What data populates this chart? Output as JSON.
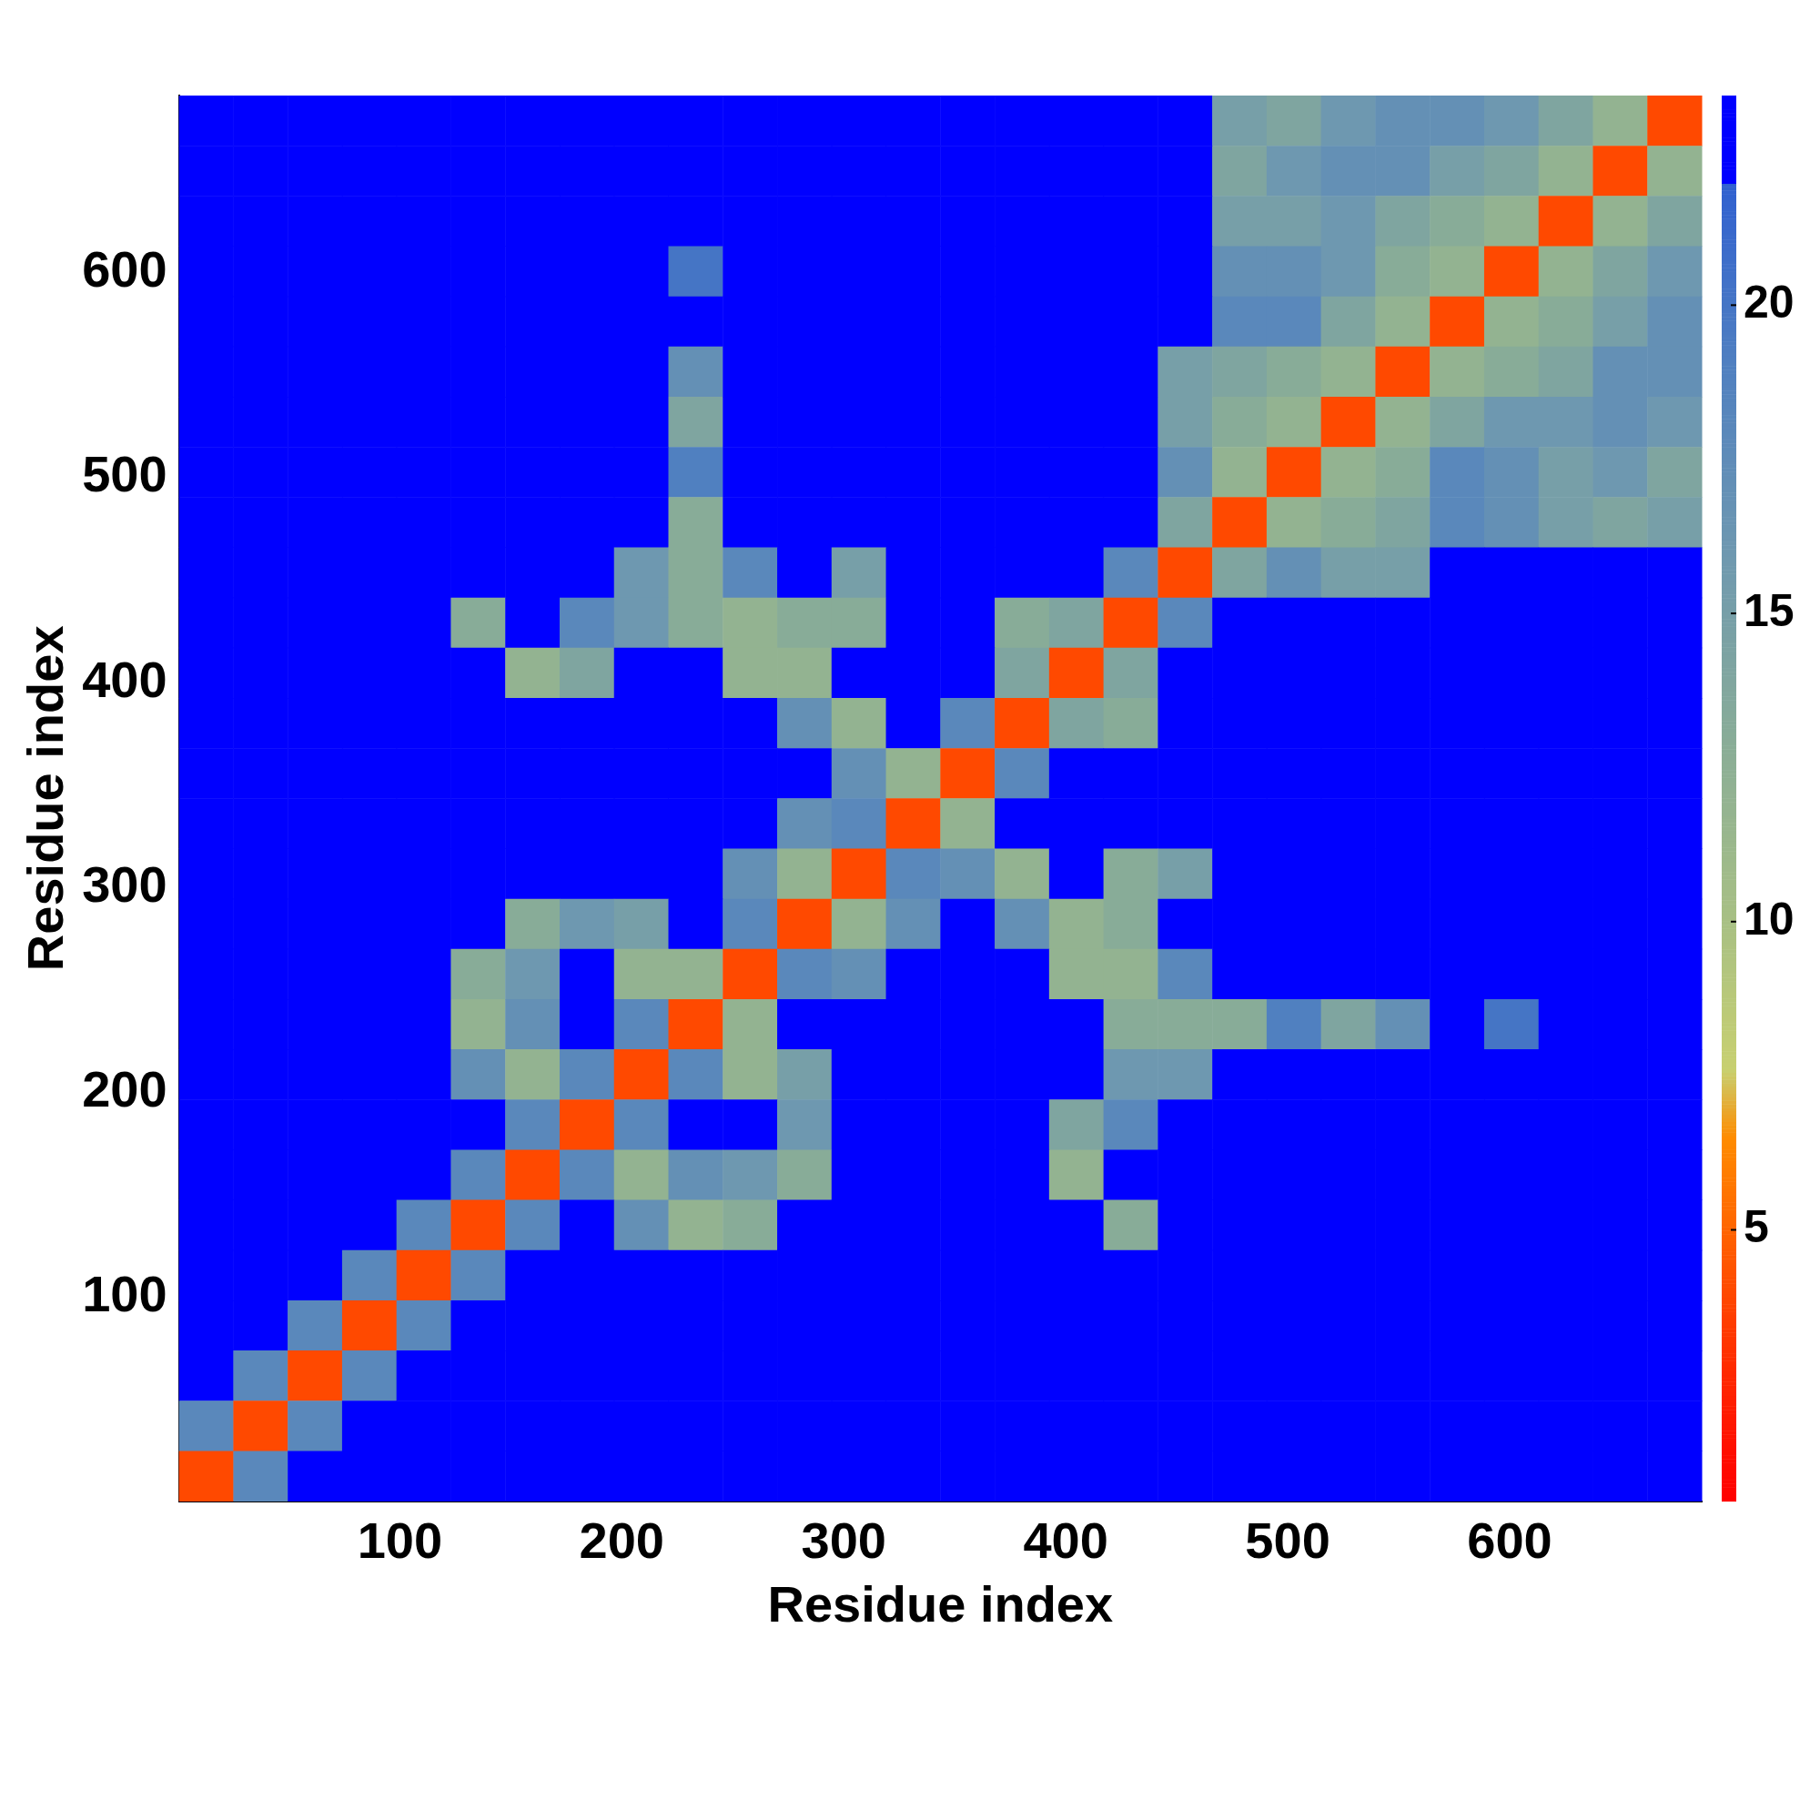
{
  "chart_data": {
    "type": "heatmap",
    "xlabel": "Residue index",
    "ylabel": "Residue index",
    "x": [
      12.75,
      37.25,
      61.75,
      86.25,
      110.75,
      135.25,
      159.75,
      184.25,
      208.75,
      233.25,
      257.75,
      282.25,
      306.75,
      331.25,
      355.75,
      380.25,
      404.75,
      429.25,
      453.75,
      478.25,
      502.75,
      527.25,
      551.75,
      576.25,
      600.75,
      625.25,
      649.75,
      674.25
    ],
    "y": [
      674.25,
      649.75,
      625.25,
      600.75,
      576.25,
      551.75,
      527.25,
      502.75,
      478.25,
      453.75,
      429.25,
      404.75,
      380.25,
      355.75,
      331.25,
      306.75,
      282.25,
      257.75,
      233.25,
      208.75,
      184.25,
      159.75,
      135.25,
      110.75,
      86.25,
      61.75,
      37.25,
      12.75
    ],
    "xlim": [
      0.5,
      686.5
    ],
    "ylim": [
      0.5,
      686.5
    ],
    "xticks": [
      100,
      200,
      300,
      400,
      500,
      600
    ],
    "yticks": [
      100,
      200,
      300,
      400,
      500,
      600
    ],
    "clim": [
      0.6,
      23.4
    ],
    "cticks": [
      5,
      10,
      15,
      20
    ],
    "cells": [
      [
        23,
        23,
        23,
        23,
        23,
        23,
        23,
        23,
        23,
        23,
        23,
        23,
        23,
        23,
        23,
        23,
        23,
        23,
        23,
        15,
        14,
        16,
        17,
        17,
        16,
        14,
        12,
        4
      ],
      [
        23,
        23,
        23,
        23,
        23,
        23,
        23,
        23,
        23,
        23,
        23,
        23,
        23,
        23,
        23,
        23,
        23,
        23,
        23,
        14,
        16,
        17,
        17,
        15,
        14,
        12,
        4,
        12
      ],
      [
        23,
        23,
        23,
        23,
        23,
        23,
        23,
        23,
        23,
        23,
        23,
        23,
        23,
        23,
        23,
        23,
        23,
        23,
        23,
        15,
        15,
        16,
        14,
        13,
        12,
        4,
        12,
        14
      ],
      [
        23,
        23,
        23,
        23,
        23,
        23,
        23,
        23,
        23,
        20,
        23,
        23,
        23,
        23,
        23,
        23,
        23,
        23,
        23,
        17,
        17,
        16,
        13,
        12,
        4,
        12,
        14,
        16
      ],
      [
        23,
        23,
        23,
        23,
        23,
        23,
        23,
        23,
        23,
        23,
        23,
        23,
        23,
        23,
        23,
        23,
        23,
        23,
        23,
        18,
        18,
        14,
        12,
        4,
        12,
        13,
        15,
        17
      ],
      [
        23,
        23,
        23,
        23,
        23,
        23,
        23,
        23,
        23,
        17,
        23,
        23,
        23,
        23,
        23,
        23,
        23,
        23,
        15,
        14,
        13,
        12,
        4,
        12,
        13,
        14,
        17,
        17
      ],
      [
        23,
        23,
        23,
        23,
        23,
        23,
        23,
        23,
        23,
        14,
        23,
        23,
        23,
        23,
        23,
        23,
        23,
        23,
        15,
        13,
        12,
        4,
        12,
        14,
        16,
        16,
        17,
        16
      ],
      [
        23,
        23,
        23,
        23,
        23,
        23,
        23,
        23,
        23,
        19,
        23,
        23,
        23,
        23,
        23,
        23,
        23,
        23,
        17,
        12,
        4,
        12,
        13,
        18,
        17,
        15,
        16,
        14
      ],
      [
        23,
        23,
        23,
        23,
        23,
        23,
        23,
        23,
        23,
        13,
        23,
        23,
        23,
        23,
        23,
        23,
        23,
        23,
        14,
        4,
        12,
        13,
        14,
        18,
        17,
        15,
        14,
        15
      ],
      [
        23,
        23,
        23,
        23,
        23,
        23,
        23,
        23,
        16,
        13,
        18,
        23,
        15,
        23,
        23,
        23,
        23,
        18,
        4,
        14,
        17,
        15,
        15,
        23,
        23,
        23,
        23,
        23
      ],
      [
        23,
        23,
        23,
        23,
        23,
        13,
        23,
        18,
        16,
        13,
        12,
        13,
        13,
        23,
        23,
        13,
        14,
        4,
        18,
        23,
        23,
        23,
        23,
        23,
        23,
        23,
        23,
        23
      ],
      [
        23,
        23,
        23,
        23,
        23,
        23,
        12,
        14,
        23,
        23,
        12,
        12,
        23,
        23,
        23,
        14,
        4,
        14,
        23,
        23,
        23,
        23,
        23,
        23,
        23,
        23,
        23,
        23
      ],
      [
        23,
        23,
        23,
        23,
        23,
        23,
        23,
        23,
        23,
        23,
        23,
        17,
        12,
        23,
        18,
        4,
        14,
        13,
        23,
        23,
        23,
        23,
        23,
        23,
        23,
        23,
        23,
        23
      ],
      [
        23,
        23,
        23,
        23,
        23,
        23,
        23,
        23,
        23,
        23,
        23,
        23,
        17,
        12,
        4,
        18,
        23,
        23,
        23,
        23,
        23,
        23,
        23,
        23,
        23,
        23,
        23,
        23
      ],
      [
        23,
        23,
        23,
        23,
        23,
        23,
        23,
        23,
        23,
        23,
        23,
        17,
        18,
        4,
        12,
        23,
        23,
        23,
        23,
        23,
        23,
        23,
        23,
        23,
        23,
        23,
        23,
        23
      ],
      [
        23,
        23,
        23,
        23,
        23,
        23,
        23,
        23,
        23,
        23,
        17,
        12,
        4,
        18,
        17,
        12,
        23,
        13,
        15,
        23,
        23,
        23,
        23,
        23,
        23,
        23,
        23,
        23
      ],
      [
        23,
        23,
        23,
        23,
        23,
        23,
        13,
        16,
        15,
        23,
        18,
        4,
        12,
        17,
        23,
        17,
        12,
        13,
        23,
        23,
        23,
        23,
        23,
        23,
        23,
        23,
        23,
        23
      ],
      [
        23,
        23,
        23,
        23,
        23,
        13,
        16,
        23,
        12,
        12,
        4,
        18,
        17,
        23,
        23,
        23,
        12,
        12,
        18,
        23,
        23,
        23,
        23,
        23,
        23,
        23,
        23,
        23
      ],
      [
        23,
        23,
        23,
        23,
        23,
        12,
        17,
        23,
        18,
        4,
        12,
        23,
        23,
        23,
        23,
        23,
        23,
        13,
        13,
        13,
        19,
        14,
        17,
        23,
        20,
        23,
        23,
        23
      ],
      [
        23,
        23,
        23,
        23,
        23,
        17,
        12,
        18,
        4,
        18,
        12,
        15,
        23,
        23,
        23,
        23,
        23,
        16,
        16,
        23,
        23,
        23,
        23,
        23,
        23,
        23,
        23,
        23
      ],
      [
        23,
        23,
        23,
        23,
        23,
        23,
        18,
        4,
        18,
        23,
        23,
        16,
        23,
        23,
        23,
        23,
        14,
        18,
        23,
        23,
        23,
        23,
        23,
        23,
        23,
        23,
        23,
        23
      ],
      [
        23,
        23,
        23,
        23,
        23,
        18,
        4,
        18,
        12,
        17,
        16,
        13,
        23,
        23,
        23,
        23,
        12,
        23,
        23,
        23,
        23,
        23,
        23,
        23,
        23,
        23,
        23,
        23
      ],
      [
        23,
        23,
        23,
        23,
        18,
        4,
        18,
        23,
        17,
        12,
        13,
        23,
        23,
        23,
        23,
        23,
        23,
        13,
        23,
        23,
        23,
        23,
        23,
        23,
        23,
        23,
        23,
        23
      ],
      [
        23,
        23,
        23,
        18,
        4,
        18,
        23,
        23,
        23,
        23,
        23,
        23,
        23,
        23,
        23,
        23,
        23,
        23,
        23,
        23,
        23,
        23,
        23,
        23,
        23,
        23,
        23,
        23
      ],
      [
        23,
        23,
        18,
        4,
        18,
        23,
        23,
        23,
        23,
        23,
        23,
        23,
        23,
        23,
        23,
        23,
        23,
        23,
        23,
        23,
        23,
        23,
        23,
        23,
        23,
        23,
        23,
        23
      ],
      [
        23,
        18,
        4,
        18,
        23,
        23,
        23,
        23,
        23,
        23,
        23,
        23,
        23,
        23,
        23,
        23,
        23,
        23,
        23,
        23,
        23,
        23,
        23,
        23,
        23,
        23,
        23,
        23
      ],
      [
        18,
        4,
        18,
        23,
        23,
        23,
        23,
        23,
        23,
        23,
        23,
        23,
        23,
        23,
        23,
        23,
        23,
        23,
        23,
        23,
        23,
        23,
        23,
        23,
        23,
        23,
        23,
        23
      ],
      [
        4,
        18,
        23,
        23,
        23,
        23,
        23,
        23,
        23,
        23,
        23,
        23,
        23,
        23,
        23,
        23,
        23,
        23,
        23,
        23,
        23,
        23,
        23,
        23,
        23,
        23,
        23,
        23
      ]
    ]
  }
}
